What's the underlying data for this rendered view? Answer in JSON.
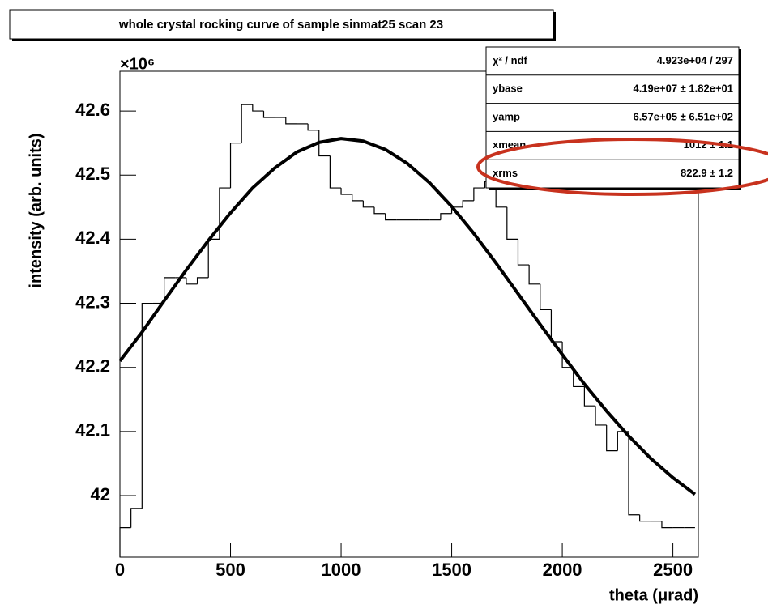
{
  "chart_data": {
    "type": "histogram",
    "title": "whole crystal rocking curve of sample sinmat25 scan 23",
    "x_label": "theta (μrad)",
    "y_label": "intensity (arb. units)",
    "y_exponent_label": "×10⁶",
    "color": "#000000",
    "bins": [
      0,
      50,
      100,
      150,
      200,
      250,
      300,
      350,
      400,
      450,
      500,
      550,
      600,
      650,
      700,
      750,
      800,
      850,
      900,
      950,
      1000,
      1050,
      1100,
      1150,
      1200,
      1250,
      1300,
      1350,
      1400,
      1450,
      1500,
      1550,
      1600,
      1650,
      1700,
      1750,
      1800,
      1850,
      1900,
      1950,
      2000,
      2050,
      2100,
      2150,
      2200,
      2250,
      2300,
      2350,
      2400,
      2450,
      2500,
      2550,
      2600
    ],
    "values": [
      41.95,
      41.98,
      42.3,
      42.3,
      42.34,
      42.34,
      42.33,
      42.34,
      42.4,
      42.48,
      42.55,
      42.61,
      42.6,
      42.59,
      42.59,
      42.58,
      42.58,
      42.57,
      42.53,
      42.48,
      42.47,
      42.46,
      42.45,
      42.44,
      42.43,
      42.43,
      42.43,
      42.43,
      42.43,
      42.44,
      42.45,
      42.46,
      42.48,
      42.49,
      42.45,
      42.4,
      42.36,
      42.33,
      42.29,
      42.24,
      42.2,
      42.17,
      42.14,
      42.11,
      42.07,
      42.1,
      41.97,
      41.96,
      41.96,
      41.95,
      41.95,
      41.95
    ],
    "fit": {
      "x": [
        0,
        100,
        200,
        300,
        400,
        500,
        600,
        700,
        800,
        900,
        1000,
        1100,
        1200,
        1300,
        1400,
        1500,
        1600,
        1700,
        1800,
        1900,
        2000,
        2100,
        2200,
        2300,
        2400,
        2500,
        2600
      ],
      "values": [
        42.21,
        42.255,
        42.304,
        42.352,
        42.398,
        42.441,
        42.48,
        42.511,
        42.536,
        42.551,
        42.557,
        42.553,
        42.54,
        42.518,
        42.488,
        42.451,
        42.409,
        42.363,
        42.315,
        42.267,
        42.22,
        42.174,
        42.132,
        42.093,
        42.058,
        42.028,
        42.002
      ]
    },
    "stats": [
      {
        "name": "χ² / ndf",
        "value": "4.923e+04 / 297"
      },
      {
        "name": "ybase",
        "value": "4.19e+07 ± 1.82e+01"
      },
      {
        "name": "yamp",
        "value": "6.57e+05 ± 6.51e+02"
      },
      {
        "name": "xmean",
        "value": "1012 ± 1.1"
      },
      {
        "name": "xrms",
        "value": "822.9 ± 1.2"
      }
    ],
    "xlim": [
      0,
      2615
    ],
    "ylim": [
      41.904,
      42.662
    ],
    "xticks": [
      0,
      500,
      1000,
      1500,
      2000,
      2500
    ],
    "yticks": [
      42,
      42.1,
      42.2,
      42.3,
      42.4,
      42.5,
      42.6
    ]
  }
}
